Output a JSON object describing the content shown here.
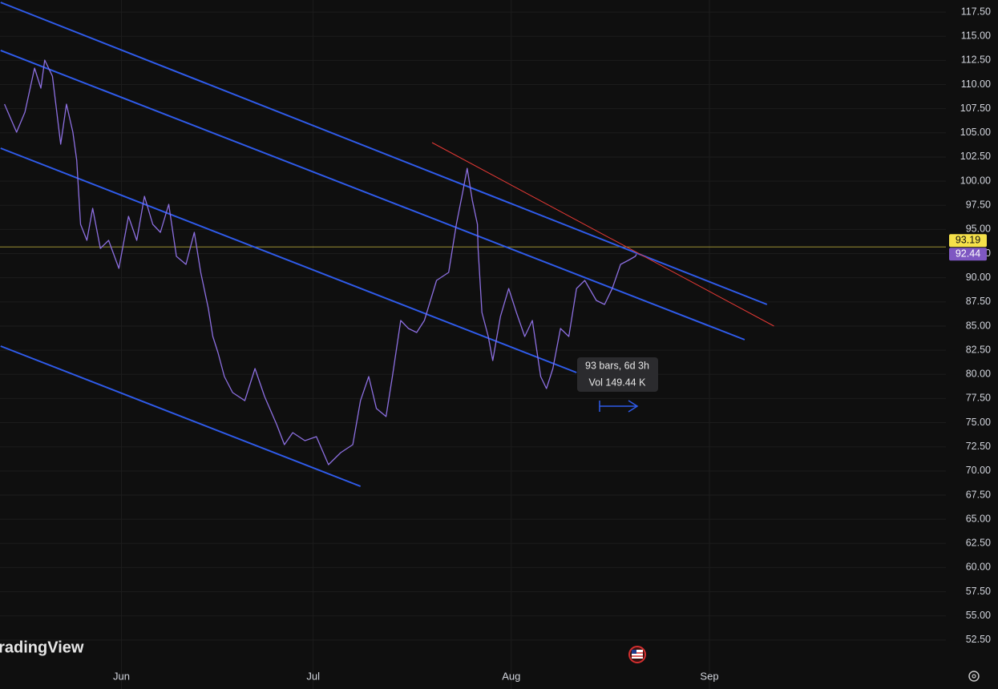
{
  "chart_data": {
    "type": "line",
    "x": [
      -18.3,
      -16.4,
      -15.1,
      -13.6,
      -12.6,
      -12.0,
      -10.8,
      -9.5,
      -8.6,
      -7.6,
      -7.0,
      -6.4,
      -5.4,
      -4.5,
      -3.3,
      -2.0,
      -0.4,
      1.1,
      2.4,
      3.6,
      4.9,
      6.1,
      7.4,
      8.6,
      10.1,
      11.4,
      12.4,
      13.6,
      14.3,
      15.1,
      16.1,
      17.4,
      19.3,
      20.9,
      22.4,
      24.3,
      25.5,
      26.8,
      28.7,
      30.5,
      32.4,
      34.3,
      36.2,
      37.4,
      38.7,
      39.9,
      41.4,
      42.4,
      43.7,
      44.9,
      46.2,
      47.4,
      49.3,
      51.2,
      52.4,
      53.4,
      54.1,
      54.9,
      55.7,
      55.8,
      56.4,
      57.4,
      58.1,
      59.3,
      60.6,
      61.8,
      63.1,
      64.3,
      65.6,
      66.5,
      67.5,
      68.7,
      70.0,
      71.2,
      72.5,
      74.3,
      75.6,
      76.8,
      78.1,
      79.3,
      80.4,
      80.6
    ],
    "series": [
      {
        "color": "#8c6fe0",
        "values": [
          107.97,
          105.07,
          107.14,
          111.7,
          109.63,
          112.53,
          110.87,
          103.82,
          107.97,
          105.07,
          102.16,
          95.53,
          93.87,
          97.19,
          93.04,
          93.87,
          90.97,
          96.36,
          93.87,
          98.43,
          95.53,
          94.7,
          97.6,
          92.21,
          91.38,
          94.7,
          90.55,
          86.82,
          83.92,
          82.26,
          79.77,
          78.11,
          77.28,
          80.6,
          77.7,
          74.8,
          72.72,
          73.97,
          73.14,
          73.55,
          70.65,
          71.89,
          72.72,
          77.28,
          79.77,
          76.46,
          75.63,
          79.77,
          85.58,
          84.75,
          84.33,
          85.58,
          89.72,
          90.55,
          95.53,
          98.85,
          101.33,
          98.02,
          95.53,
          93.04,
          86.41,
          83.92,
          81.43,
          85.99,
          88.89,
          86.41,
          83.92,
          85.58,
          79.77,
          78.53,
          80.6,
          84.75,
          83.92,
          88.89,
          89.72,
          87.65,
          87.24,
          88.89,
          91.38,
          91.8,
          92.21,
          92.44
        ]
      }
    ],
    "trendlines": [
      {
        "color": "#2f5bea",
        "x": [
          -18.9,
          101.0
        ],
        "values": [
          118.5,
          87.24
        ]
      },
      {
        "color": "#2f5bea",
        "x": [
          -18.9,
          97.5
        ],
        "values": [
          113.53,
          83.59
        ]
      },
      {
        "color": "#2f5bea",
        "x": [
          -18.9,
          71.2
        ],
        "values": [
          103.41,
          80.19
        ]
      },
      {
        "color": "#2f5bea",
        "x": [
          -18.9,
          37.4
        ],
        "values": [
          82.92,
          68.41
        ]
      },
      {
        "color": "#e53935",
        "x": [
          48.6,
          102.1
        ],
        "values": [
          103.99,
          85.0
        ]
      }
    ],
    "price_line": {
      "value": 93.19,
      "color": "#f5e14a"
    },
    "measure": [
      "93 bars, 6d 3h",
      "Vol 149.44 K"
    ],
    "watermark": "TradingView",
    "xlim": [
      -19,
      129
    ],
    "xticks": [
      {
        "value": 0,
        "label": "Jun"
      },
      {
        "value": 30,
        "label": "Jul"
      },
      {
        "value": 61,
        "label": "Aug"
      },
      {
        "value": 92,
        "label": "Sep"
      }
    ],
    "ylim": [
      50,
      118.75
    ],
    "yticks": [
      {
        "value": 52.5,
        "label": "52.50"
      },
      {
        "value": 55,
        "label": "55.00"
      },
      {
        "value": 57.5,
        "label": "57.50"
      },
      {
        "value": 60,
        "label": "60.00"
      },
      {
        "value": 62.5,
        "label": "62.50"
      },
      {
        "value": 65,
        "label": "65.00"
      },
      {
        "value": 67.5,
        "label": "67.50"
      },
      {
        "value": 70,
        "label": "70.00"
      },
      {
        "value": 72.5,
        "label": "72.50"
      },
      {
        "value": 75,
        "label": "75.00"
      },
      {
        "value": 77.5,
        "label": "77.50"
      },
      {
        "value": 80,
        "label": "80.00"
      },
      {
        "value": 82.5,
        "label": "82.50"
      },
      {
        "value": 85,
        "label": "85.00"
      },
      {
        "value": 87.5,
        "label": "87.50"
      },
      {
        "value": 90,
        "label": "90.00"
      },
      {
        "value": 92.5,
        "label": "92.50"
      },
      {
        "value": 95,
        "label": "95.00"
      },
      {
        "value": 97.5,
        "label": "97.50"
      },
      {
        "value": 100,
        "label": "100.00"
      },
      {
        "value": 102.5,
        "label": "102.50"
      },
      {
        "value": 105,
        "label": "105.00"
      },
      {
        "value": 107.5,
        "label": "107.50"
      },
      {
        "value": 110,
        "label": "110.00"
      },
      {
        "value": 112.5,
        "label": "112.50"
      },
      {
        "value": 115,
        "label": "115.00"
      },
      {
        "value": 117.5,
        "label": "117.50"
      }
    ],
    "grid": true
  }
}
